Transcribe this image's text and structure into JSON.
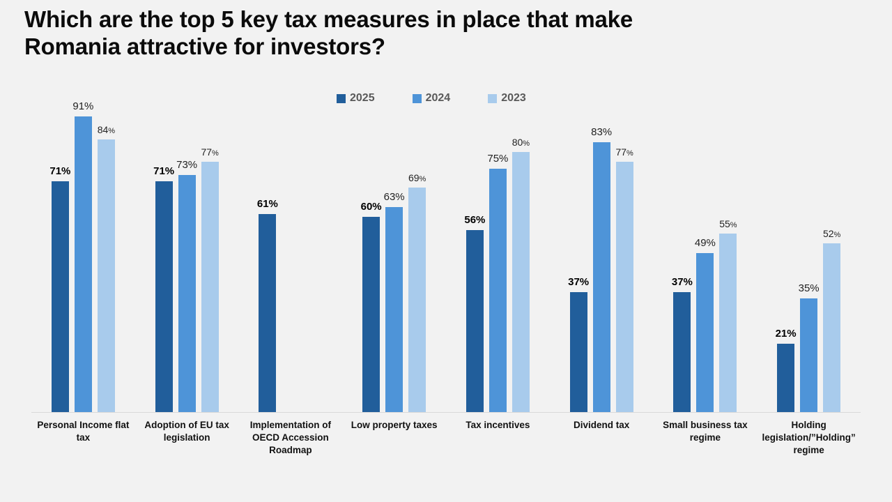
{
  "title": {
    "line1": "Which are the top 5 key tax measures in place that make",
    "line2": "Romania attractive for investors?"
  },
  "colors": {
    "background": "#f2f2f2",
    "axis_line": "#d9d9d9",
    "legend_text": "#595959",
    "series_2025": "#215E9B",
    "series_2024": "#4E94D8",
    "series_2023": "#A8CBEC"
  },
  "chart_data": {
    "type": "bar",
    "title": "Which are the top 5 key tax measures in place that make Romania attractive for investors?",
    "categories": [
      "Personal Income flat tax",
      "Adoption of EU tax legislation",
      "Implementation of OECD Accession Roadmap",
      "Low property taxes",
      "Tax incentives",
      "Dividend tax",
      "Small business tax regime",
      "Holding legislation/”Holding” regime"
    ],
    "series": [
      {
        "name": "2025",
        "color": "#215E9B",
        "values": [
          71,
          71,
          61,
          60,
          56,
          37,
          37,
          21
        ]
      },
      {
        "name": "2024",
        "color": "#4E94D8",
        "values": [
          91,
          73,
          null,
          63,
          75,
          83,
          49,
          35
        ]
      },
      {
        "name": "2023",
        "color": "#A8CBEC",
        "values": [
          84,
          77,
          null,
          69,
          80,
          77,
          55,
          52
        ]
      }
    ],
    "value_suffix": "%",
    "ylim": [
      0,
      100
    ],
    "grid": false,
    "legend_position": "top-center",
    "value_labels": "above-bars",
    "xlabel": "",
    "ylabel": ""
  }
}
